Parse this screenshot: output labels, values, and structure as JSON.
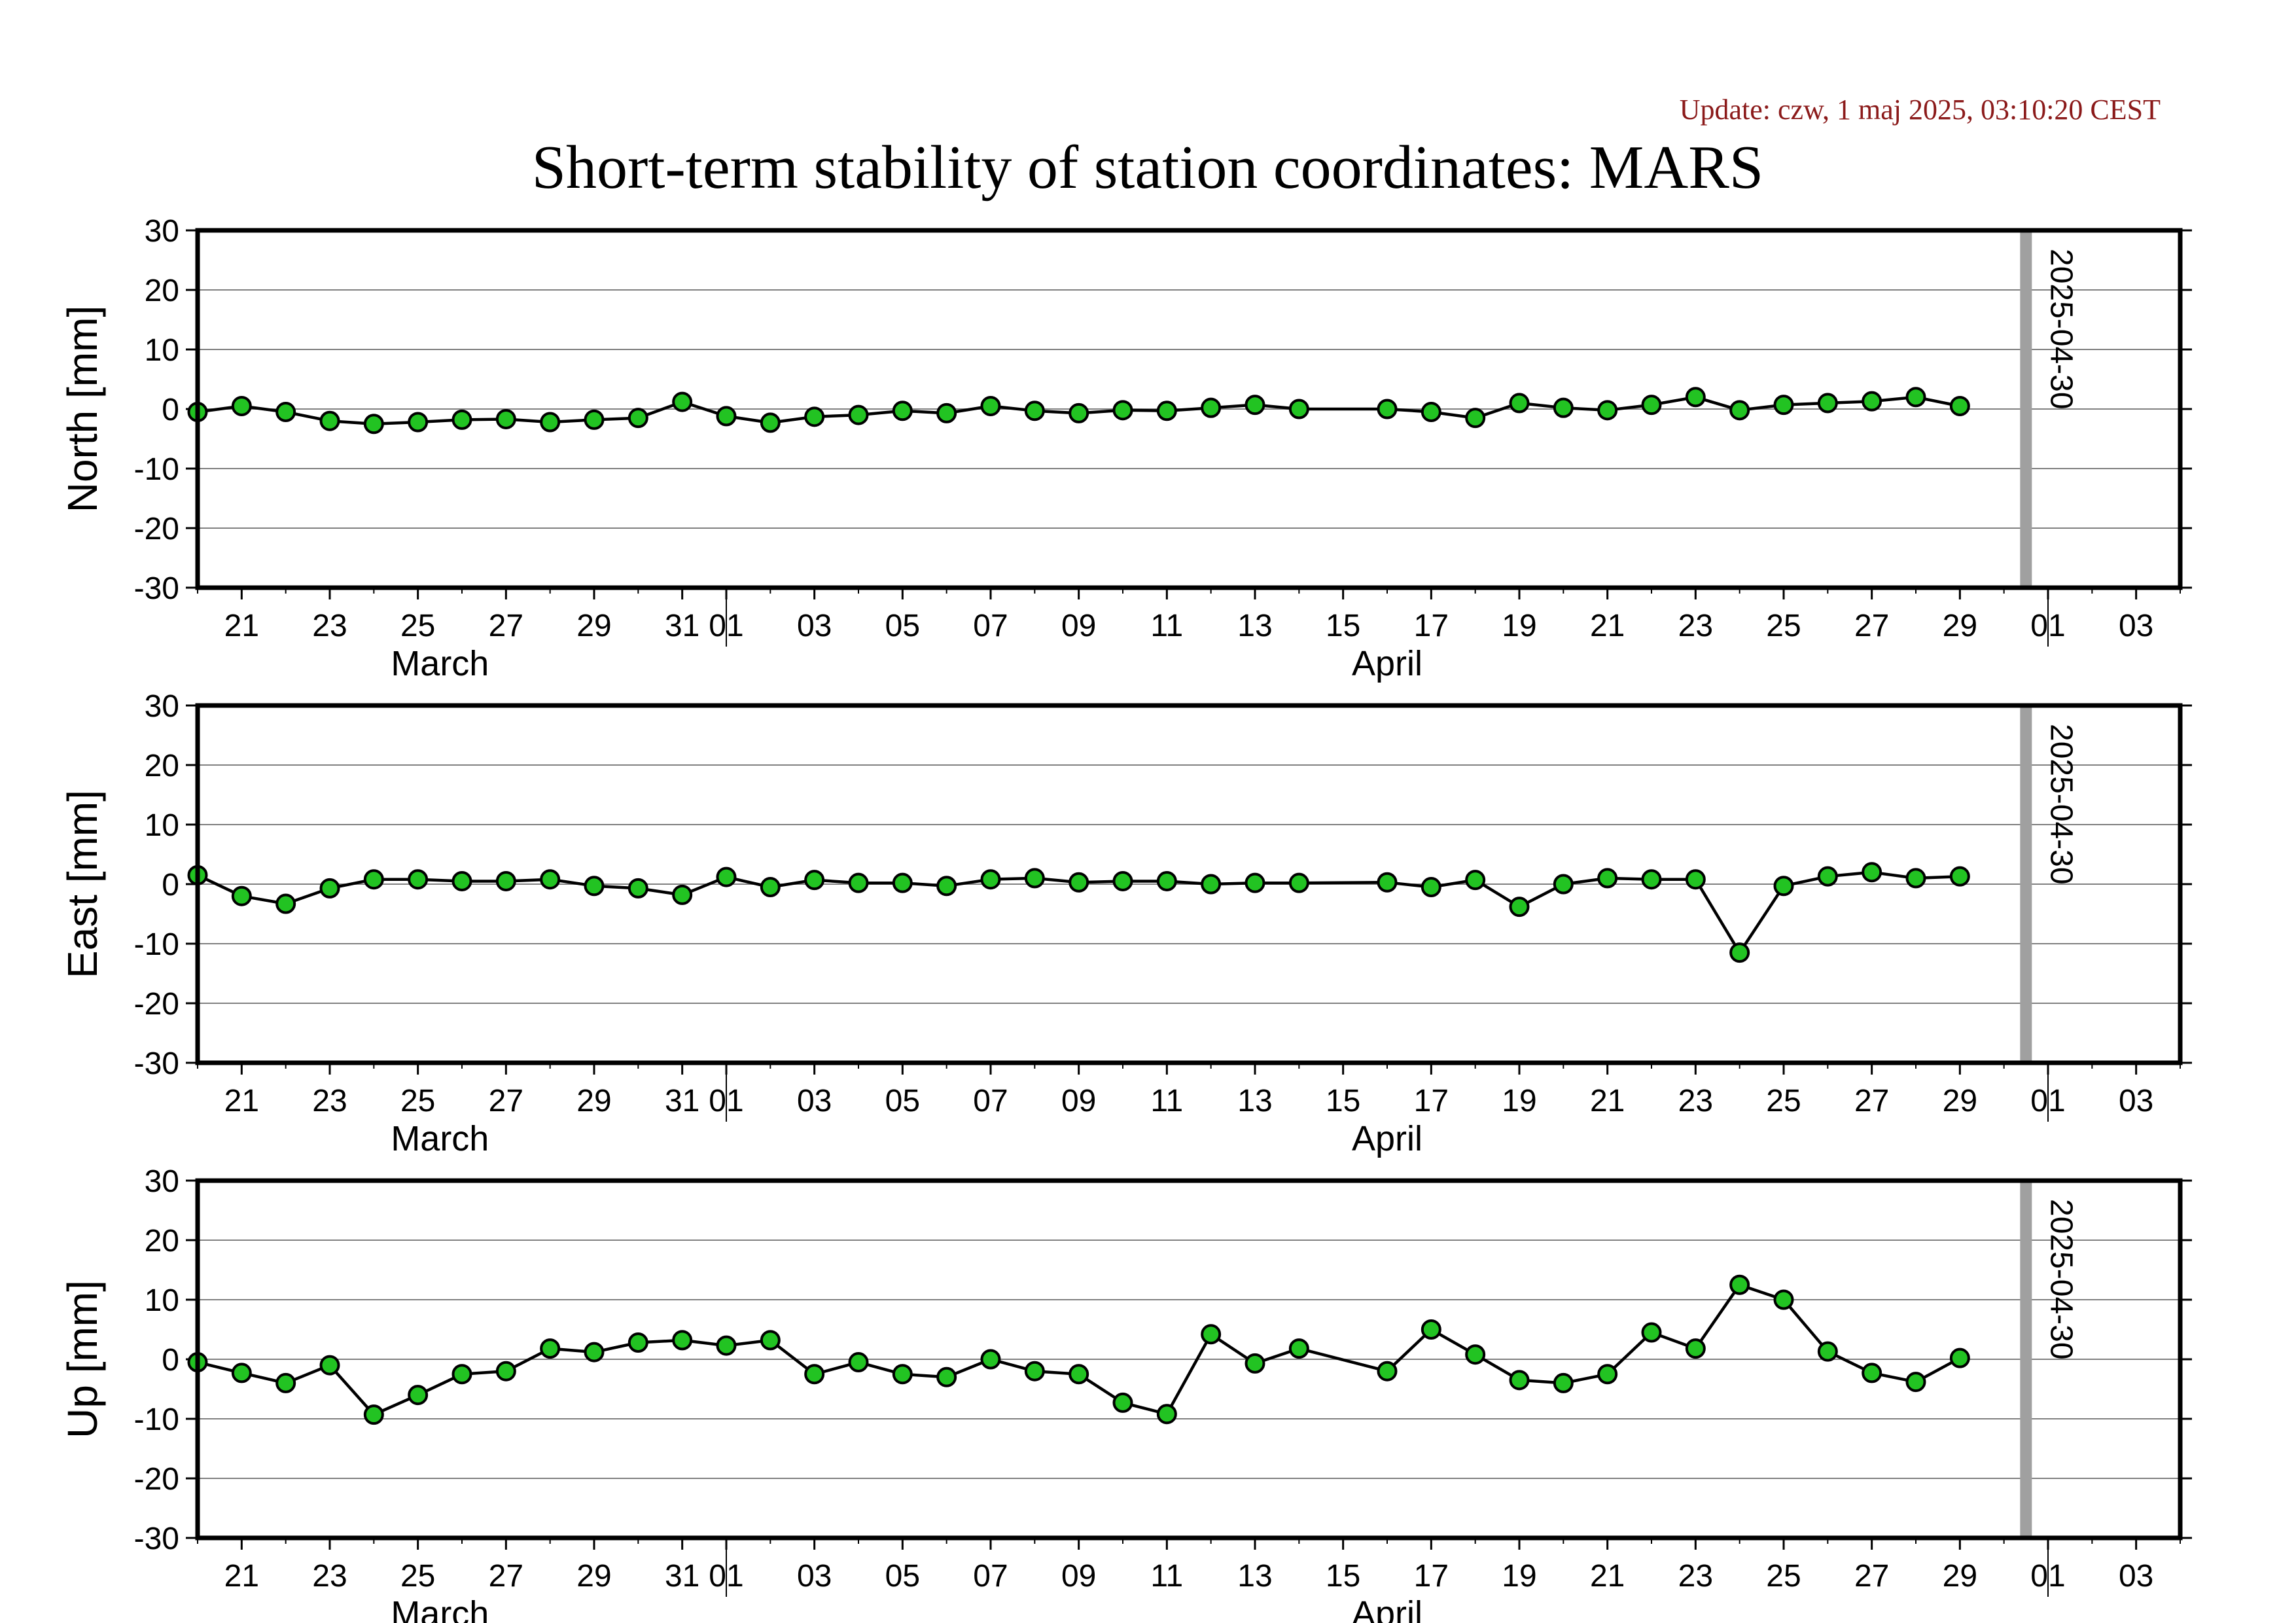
{
  "header": {
    "update": "Update: czw, 1 maj 2025, 03:10:20 CEST",
    "title": "Short-term stability of station coordinates: MARS"
  },
  "chart_data": [
    {
      "type": "line",
      "ylabel": "North [mm]",
      "ylim": [
        -30,
        30
      ],
      "yticks": [
        "30",
        "20",
        "10",
        "0",
        "-10",
        "-20",
        "-30"
      ],
      "x_range": [
        "2025-03-20",
        "2025-05-04"
      ],
      "x_ticks": [
        "21",
        "23",
        "25",
        "27",
        "29",
        "31",
        "01",
        "03",
        "05",
        "07",
        "09",
        "11",
        "13",
        "15",
        "17",
        "19",
        "21",
        "23",
        "25",
        "27",
        "29",
        "01",
        "03"
      ],
      "months": [
        "March",
        "April"
      ],
      "grid": true,
      "marker_label": "2025-04-30",
      "x": [
        "2025-03-20",
        "2025-03-21",
        "2025-03-22",
        "2025-03-23",
        "2025-03-24",
        "2025-03-25",
        "2025-03-26",
        "2025-03-27",
        "2025-03-28",
        "2025-03-29",
        "2025-03-30",
        "2025-03-31",
        "2025-04-01",
        "2025-04-02",
        "2025-04-03",
        "2025-04-04",
        "2025-04-05",
        "2025-04-06",
        "2025-04-07",
        "2025-04-08",
        "2025-04-09",
        "2025-04-10",
        "2025-04-11",
        "2025-04-12",
        "2025-04-13",
        "2025-04-14",
        "2025-04-16",
        "2025-04-17",
        "2025-04-18",
        "2025-04-19",
        "2025-04-20",
        "2025-04-21",
        "2025-04-22",
        "2025-04-23",
        "2025-04-24",
        "2025-04-25",
        "2025-04-26",
        "2025-04-27",
        "2025-04-28",
        "2025-04-29"
      ],
      "values": [
        -0.5,
        0.5,
        -0.5,
        -2,
        -2.5,
        -2.2,
        -1.8,
        -1.7,
        -2.2,
        -1.8,
        -1.5,
        1.2,
        -1.2,
        -2.3,
        -1.3,
        -1,
        -0.3,
        -0.7,
        0.5,
        -0.3,
        -0.7,
        -0.2,
        -0.3,
        0.2,
        0.7,
        0,
        0,
        -0.5,
        -1.5,
        1,
        0.2,
        -0.2,
        0.7,
        2,
        -0.2,
        0.7,
        1,
        1.3,
        2,
        0.5
      ]
    },
    {
      "type": "line",
      "ylabel": "East [mm]",
      "ylim": [
        -30,
        30
      ],
      "yticks": [
        "30",
        "20",
        "10",
        "0",
        "-10",
        "-20",
        "-30"
      ],
      "x_range": [
        "2025-03-20",
        "2025-05-04"
      ],
      "x_ticks": [
        "21",
        "23",
        "25",
        "27",
        "29",
        "31",
        "01",
        "03",
        "05",
        "07",
        "09",
        "11",
        "13",
        "15",
        "17",
        "19",
        "21",
        "23",
        "25",
        "27",
        "29",
        "01",
        "03"
      ],
      "months": [
        "March",
        "April"
      ],
      "grid": true,
      "marker_label": "2025-04-30",
      "x": [
        "2025-03-20",
        "2025-03-21",
        "2025-03-22",
        "2025-03-23",
        "2025-03-24",
        "2025-03-25",
        "2025-03-26",
        "2025-03-27",
        "2025-03-28",
        "2025-03-29",
        "2025-03-30",
        "2025-03-31",
        "2025-04-01",
        "2025-04-02",
        "2025-04-03",
        "2025-04-04",
        "2025-04-05",
        "2025-04-06",
        "2025-04-07",
        "2025-04-08",
        "2025-04-09",
        "2025-04-10",
        "2025-04-11",
        "2025-04-12",
        "2025-04-13",
        "2025-04-14",
        "2025-04-16",
        "2025-04-17",
        "2025-04-18",
        "2025-04-19",
        "2025-04-20",
        "2025-04-21",
        "2025-04-22",
        "2025-04-23",
        "2025-04-24",
        "2025-04-25",
        "2025-04-26",
        "2025-04-27",
        "2025-04-28",
        "2025-04-29"
      ],
      "values": [
        1.5,
        -2,
        -3.3,
        -0.7,
        0.8,
        0.8,
        0.5,
        0.5,
        0.8,
        -0.3,
        -0.7,
        -1.8,
        1.2,
        -0.5,
        0.7,
        0.2,
        0.2,
        -0.3,
        0.8,
        1,
        0.3,
        0.5,
        0.5,
        0,
        0.2,
        0.2,
        0.3,
        -0.5,
        0.7,
        -3.8,
        0,
        1,
        0.8,
        0.8,
        -11.5,
        -0.3,
        1.3,
        2,
        1,
        1.3
      ]
    },
    {
      "type": "line",
      "ylabel": "Up [mm]",
      "ylim": [
        -30,
        30
      ],
      "yticks": [
        "30",
        "20",
        "10",
        "0",
        "-10",
        "-20",
        "-30"
      ],
      "x_range": [
        "2025-03-20",
        "2025-05-04"
      ],
      "x_ticks": [
        "21",
        "23",
        "25",
        "27",
        "29",
        "31",
        "01",
        "03",
        "05",
        "07",
        "09",
        "11",
        "13",
        "15",
        "17",
        "19",
        "21",
        "23",
        "25",
        "27",
        "29",
        "01",
        "03"
      ],
      "months": [
        "March",
        "April"
      ],
      "grid": true,
      "marker_label": "2025-04-30",
      "x": [
        "2025-03-20",
        "2025-03-21",
        "2025-03-22",
        "2025-03-23",
        "2025-03-24",
        "2025-03-25",
        "2025-03-26",
        "2025-03-27",
        "2025-03-28",
        "2025-03-29",
        "2025-03-30",
        "2025-03-31",
        "2025-04-01",
        "2025-04-02",
        "2025-04-03",
        "2025-04-04",
        "2025-04-05",
        "2025-04-06",
        "2025-04-07",
        "2025-04-08",
        "2025-04-09",
        "2025-04-10",
        "2025-04-11",
        "2025-04-12",
        "2025-04-13",
        "2025-04-14",
        "2025-04-16",
        "2025-04-17",
        "2025-04-18",
        "2025-04-19",
        "2025-04-20",
        "2025-04-21",
        "2025-04-22",
        "2025-04-23",
        "2025-04-24",
        "2025-04-25",
        "2025-04-26",
        "2025-04-27",
        "2025-04-28",
        "2025-04-29"
      ],
      "values": [
        -0.5,
        -2.3,
        -4,
        -1,
        -9.3,
        -6,
        -2.5,
        -2,
        1.8,
        1.2,
        2.8,
        3.2,
        2.3,
        3.2,
        -2.5,
        -0.5,
        -2.5,
        -3,
        0,
        -2,
        -2.5,
        -7.3,
        -9.2,
        4.2,
        -0.7,
        1.8,
        -2,
        5,
        0.8,
        -3.5,
        -4,
        -2.5,
        4.5,
        1.8,
        12.5,
        10,
        1.3,
        -2.3,
        -3.8,
        0.2
      ]
    }
  ],
  "style": {
    "point_fill": "#22c322",
    "point_stroke": "#000000",
    "line_color": "#000000",
    "grid_color": "#808080",
    "marker_color": "#a0a0a0",
    "update_color": "#8b1a1a"
  }
}
